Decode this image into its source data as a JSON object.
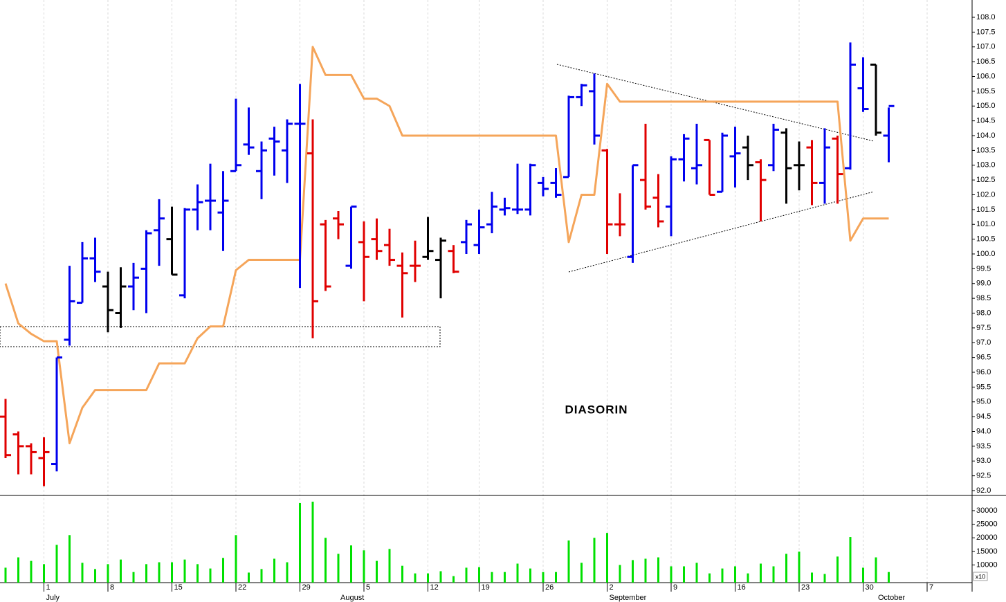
{
  "chart_data": {
    "type": "ohlc",
    "title": "DIASORIN",
    "categories": [
      null,
      null,
      null,
      "1",
      null,
      null,
      null,
      null,
      "8",
      null,
      null,
      null,
      null,
      "15",
      null,
      null,
      null,
      null,
      "22",
      null,
      null,
      null,
      null,
      "29",
      null,
      null,
      null,
      null,
      "5",
      null,
      null,
      null,
      null,
      "12",
      null,
      null,
      null,
      "19",
      null,
      null,
      null,
      null,
      "26",
      null,
      null,
      null,
      null,
      "2",
      null,
      null,
      null,
      null,
      "9",
      null,
      null,
      null,
      null,
      "16",
      null,
      null,
      null,
      null,
      "23",
      null,
      null,
      null,
      null,
      "30",
      null,
      null,
      null,
      null,
      "7",
      null,
      null
    ],
    "months": [
      null,
      null,
      null,
      "July",
      null,
      null,
      null,
      null,
      null,
      null,
      null,
      null,
      null,
      null,
      null,
      null,
      null,
      null,
      null,
      null,
      null,
      null,
      null,
      null,
      null,
      null,
      "August",
      null,
      null,
      null,
      null,
      null,
      null,
      null,
      null,
      null,
      null,
      null,
      null,
      null,
      null,
      null,
      null,
      null,
      null,
      null,
      null,
      "September",
      null,
      null,
      null,
      null,
      null,
      null,
      null,
      null,
      null,
      null,
      null,
      null,
      null,
      null,
      null,
      null,
      null,
      null,
      null,
      null,
      "October",
      null,
      null,
      null,
      null,
      null,
      null
    ],
    "ylim": [
      92,
      108
    ],
    "yticks": [
      {
        "value": 92,
        "label": "92.0"
      },
      92.5,
      {
        "value": 93,
        "label": "93.0"
      },
      93.5,
      {
        "value": 94,
        "label": "94.0"
      },
      94.5,
      {
        "value": 95,
        "label": "95.0"
      },
      95.5,
      {
        "value": 96,
        "label": "96.0"
      },
      96.5,
      {
        "value": 97,
        "label": "97.0"
      },
      97.5,
      {
        "value": 98,
        "label": "98.0"
      },
      98.5,
      {
        "value": 99,
        "label": "99.0"
      },
      99.5,
      {
        "value": 100,
        "label": "100.0"
      },
      100.5,
      {
        "value": 101,
        "label": "101.0"
      },
      101.5,
      {
        "value": 102,
        "label": "102.0"
      },
      102.5,
      {
        "value": 103,
        "label": "103.0"
      },
      103.5,
      {
        "value": 104,
        "label": "104.0"
      },
      104.5,
      {
        "value": 105,
        "label": "105.0"
      },
      105.5,
      {
        "value": 106,
        "label": "106.0"
      },
      106.5,
      {
        "value": 107,
        "label": "107.0"
      },
      107.5,
      {
        "value": 108,
        "label": "108.0"
      }
    ],
    "grid": true,
    "open": [
      94.5,
      93.9,
      93.5,
      93.1,
      92.9,
      97.1,
      98.35,
      99.85,
      98.9,
      98.0,
      98.9,
      99.5,
      100.8,
      100.5,
      98.6,
      101.5,
      101.8,
      101.4,
      102.8,
      103.7,
      102.8,
      103.9,
      103.5,
      104.4,
      103.4,
      101.0,
      101.2,
      99.6,
      100.4,
      100.5,
      100.3,
      99.6,
      99.6,
      99.9,
      99.8,
      100.1,
      100.4,
      100.3,
      101.0,
      101.5,
      101.5,
      101.5,
      102.4,
      102.4,
      102.6,
      105.3,
      105.5,
      103.5,
      101.0,
      99.9,
      102.5,
      101.9,
      101.6,
      103.2,
      102.9,
      103.85,
      102.1,
      103.3,
      103.6,
      103.1,
      103.0,
      104.1,
      103.0,
      103.6,
      102.4,
      103.9,
      102.9,
      105.6,
      106.4,
      104.0,
      null,
      null,
      null,
      null,
      null
    ],
    "high": [
      95.1,
      94.0,
      93.6,
      93.8,
      96.5,
      99.6,
      100.4,
      100.55,
      99.4,
      99.55,
      99.7,
      100.8,
      101.85,
      101.6,
      101.55,
      102.35,
      103.05,
      102.8,
      105.25,
      104.95,
      103.8,
      104.3,
      104.55,
      105.75,
      104.55,
      101.15,
      101.45,
      101.6,
      101.1,
      101.2,
      100.85,
      100.05,
      100.45,
      101.25,
      100.55,
      100.3,
      101.15,
      101.5,
      102.1,
      101.9,
      103.05,
      103.05,
      102.6,
      102.9,
      105.35,
      105.75,
      106.1,
      103.55,
      102.05,
      103.0,
      104.4,
      102.7,
      103.3,
      104.05,
      104.4,
      103.85,
      104.1,
      104.3,
      104.0,
      103.2,
      104.4,
      104.25,
      103.8,
      103.85,
      104.25,
      104.0,
      107.15,
      106.65,
      106.4,
      104.95,
      null,
      null,
      null,
      null,
      null
    ],
    "low": [
      93.1,
      92.55,
      92.55,
      92.15,
      92.65,
      96.9,
      98.35,
      99.05,
      97.35,
      97.5,
      98.1,
      98.0,
      99.6,
      99.3,
      98.5,
      100.8,
      100.8,
      100.1,
      102.8,
      103.35,
      101.85,
      102.65,
      102.4,
      98.85,
      97.15,
      98.75,
      100.5,
      99.5,
      98.4,
      99.8,
      99.6,
      97.85,
      99.05,
      99.8,
      98.5,
      99.35,
      100.0,
      100.0,
      100.7,
      101.3,
      101.35,
      101.3,
      101.95,
      101.9,
      102.6,
      105.0,
      103.7,
      100.0,
      100.6,
      99.7,
      101.5,
      100.9,
      100.6,
      102.45,
      102.35,
      102.0,
      102.1,
      102.25,
      102.5,
      101.1,
      102.8,
      101.7,
      102.15,
      101.65,
      101.7,
      101.7,
      102.85,
      104.8,
      104.0,
      103.1,
      null,
      null,
      null,
      null,
      null
    ],
    "close": [
      93.2,
      93.5,
      93.3,
      93.3,
      96.5,
      98.4,
      99.85,
      99.4,
      98.1,
      98.9,
      99.2,
      100.7,
      101.2,
      99.3,
      101.5,
      101.75,
      101.8,
      101.8,
      103.0,
      103.6,
      103.5,
      103.8,
      104.4,
      104.4,
      98.4,
      98.9,
      101.0,
      101.6,
      99.9,
      100.1,
      99.8,
      99.35,
      99.6,
      100.1,
      100.45,
      99.4,
      101.0,
      100.9,
      101.6,
      101.55,
      101.5,
      103.0,
      102.2,
      102.0,
      105.3,
      105.7,
      104.0,
      101.0,
      101.0,
      103.0,
      101.6,
      101.1,
      103.2,
      103.9,
      103.0,
      102.0,
      104.0,
      103.4,
      103.0,
      102.5,
      104.2,
      102.9,
      103.0,
      102.4,
      103.6,
      102.7,
      106.4,
      104.9,
      104.1,
      105.0,
      null,
      null,
      null,
      null,
      null
    ],
    "colors": [
      "#e00000",
      "#e00000",
      "#e00000",
      "#e00000",
      "#0000ee",
      "#0000ee",
      "#0000ee",
      "#0000ee",
      "#000000",
      "#000000",
      "#0000ee",
      "#0000ee",
      "#0000ee",
      "#000000",
      "#0000ee",
      "#0000ee",
      "#0000ee",
      "#0000ee",
      "#0000ee",
      "#0000ee",
      "#0000ee",
      "#0000ee",
      "#0000ee",
      "#0000ee",
      "#e00000",
      "#e00000",
      "#e00000",
      "#0000ee",
      "#e00000",
      "#e00000",
      "#e00000",
      "#e00000",
      "#e00000",
      "#000000",
      "#000000",
      "#e00000",
      "#0000ee",
      "#0000ee",
      "#0000ee",
      "#0000ee",
      "#0000ee",
      "#0000ee",
      "#0000ee",
      "#0000ee",
      "#0000ee",
      "#0000ee",
      "#0000ee",
      "#e00000",
      "#e00000",
      "#0000ee",
      "#e00000",
      "#e00000",
      "#0000ee",
      "#0000ee",
      "#0000ee",
      "#e00000",
      "#0000ee",
      "#0000ee",
      "#000000",
      "#e00000",
      "#0000ee",
      "#000000",
      "#000000",
      "#e00000",
      "#0000ee",
      "#e00000",
      "#0000ee",
      "#0000ee",
      "#000000",
      "#0000ee",
      null,
      null,
      null,
      null,
      null
    ],
    "line": {
      "color": "#f5a55a",
      "values": [
        99.0,
        97.65,
        97.3,
        97.05,
        97.05,
        93.6,
        94.8,
        95.4,
        95.4,
        95.4,
        95.4,
        95.4,
        96.3,
        96.3,
        96.3,
        97.15,
        97.55,
        97.55,
        99.45,
        99.8,
        99.8,
        99.8,
        99.8,
        99.8,
        107.0,
        106.05,
        106.05,
        106.05,
        105.25,
        105.25,
        105.0,
        104.0,
        104.0,
        104.0,
        104.0,
        104.0,
        104.0,
        104.0,
        104.0,
        104.0,
        104.0,
        104.0,
        104.0,
        104.0,
        100.4,
        102.0,
        102.0,
        105.75,
        105.15,
        105.15,
        105.15,
        105.15,
        105.15,
        105.15,
        105.15,
        105.15,
        105.15,
        105.15,
        105.15,
        105.15,
        105.15,
        105.15,
        105.15,
        105.15,
        105.15,
        105.15,
        100.45,
        101.2,
        101.2,
        101.2,
        null,
        null,
        null,
        null,
        null
      ]
    },
    "volume": {
      "color": "#00e000",
      "ylim": [
        3500,
        35600
      ],
      "yticks": [
        10000,
        15000,
        20000,
        25000,
        30000
      ],
      "unit_label": "x10",
      "values": [
        9000,
        12800,
        11500,
        10300,
        17400,
        21000,
        10800,
        8500,
        10300,
        12000,
        7400,
        10300,
        11000,
        11000,
        12000,
        10300,
        8700,
        12600,
        21000,
        7200,
        8500,
        12300,
        11000,
        32800,
        33300,
        20000,
        14100,
        17200,
        15400,
        11500,
        15900,
        9700,
        6900,
        6900,
        7700,
        5900,
        9000,
        9200,
        7400,
        7400,
        10500,
        8700,
        7400,
        7400,
        19000,
        10800,
        20000,
        21800,
        10000,
        11800,
        12300,
        12800,
        9500,
        9500,
        10800,
        6900,
        8700,
        9500,
        6900,
        10500,
        9500,
        14100,
        14900,
        7200,
        6700,
        13100,
        20300,
        9000,
        12800,
        7400,
        null,
        null,
        null,
        null,
        null
      ]
    }
  }
}
